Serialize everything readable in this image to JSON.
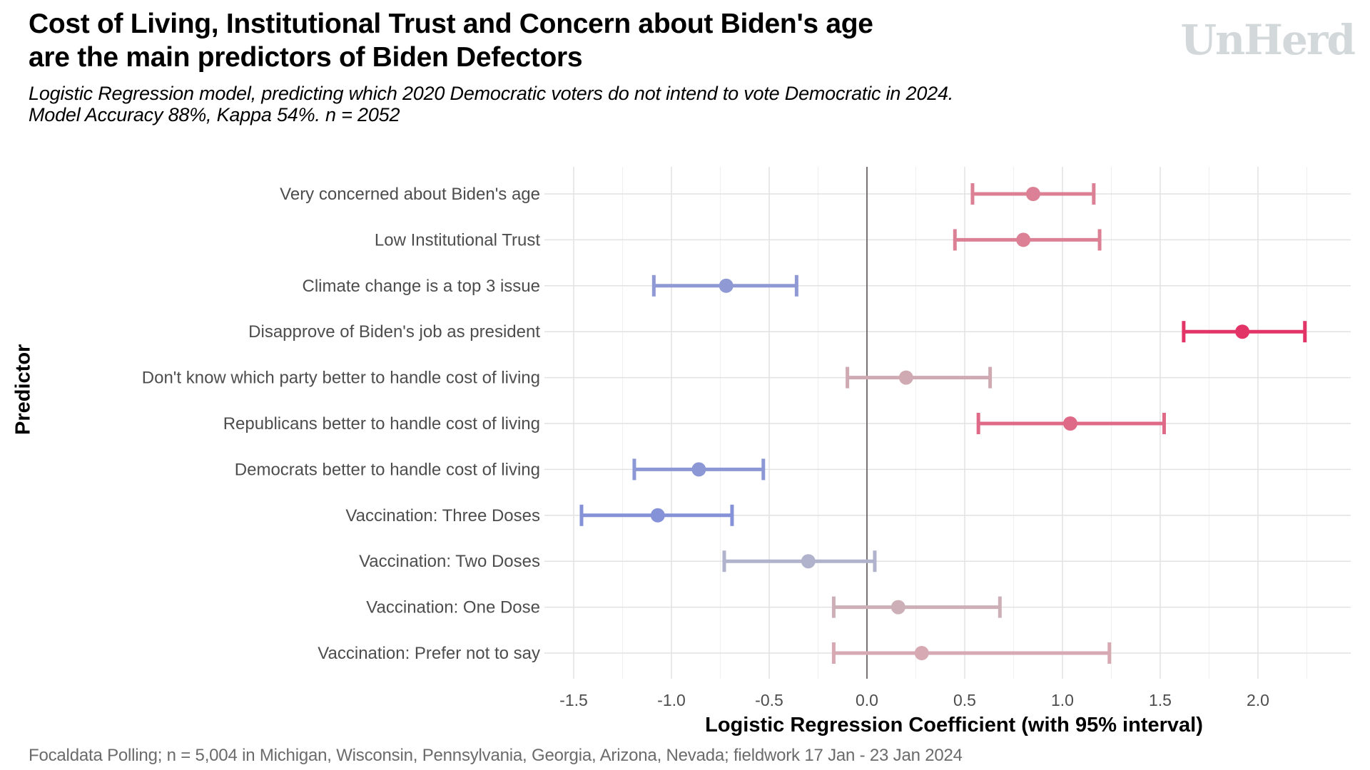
{
  "header": {
    "title_line1": "Cost of Living, Institutional Trust and Concern about Biden's age",
    "title_line2": "are the main predictors of Biden Defectors",
    "subtitle_line1": "Logistic Regression model, predicting which 2020 Democratic voters do not intend to vote Democratic in 2024.",
    "subtitle_line2": "Model Accuracy 88%, Kappa 54%. n = 2052",
    "logo": "UnHerd"
  },
  "footer": {
    "source": "Focaldata Polling; n = 5,004 in Michigan, Wisconsin, Pennsylvania, Georgia, Arizona, Nevada; fieldwork 17 Jan - 23 Jan 2024"
  },
  "chart_data": {
    "type": "scatter",
    "subtype": "coefficient-plot-with-error-bars",
    "title": "Cost of Living, Institutional Trust and Concern about Biden's age are the main predictors of Biden Defectors",
    "xlabel": "Logistic Regression Coefficient (with 95% interval)",
    "ylabel": "Predictor",
    "xlim": [
      -1.5,
      2.25
    ],
    "xticks": [
      -1.5,
      -1.0,
      -0.5,
      0.0,
      0.5,
      1.0,
      1.5,
      2.0
    ],
    "xtick_labels": [
      "-1.5",
      "-1.0",
      "-0.5",
      "0.0",
      "0.5",
      "1.0",
      "1.5",
      "2.0"
    ],
    "grid": true,
    "reference_line_x": 0,
    "legend": "none",
    "predictors": [
      {
        "label": "Very concerned about Biden's age",
        "estimate": 0.85,
        "low": 0.54,
        "high": 1.16,
        "color": "#dc8195"
      },
      {
        "label": "Low Institutional Trust",
        "estimate": 0.8,
        "low": 0.45,
        "high": 1.19,
        "color": "#dc8195"
      },
      {
        "label": "Climate change is a top 3 issue",
        "estimate": -0.72,
        "low": -1.09,
        "high": -0.36,
        "color": "#8f99d4"
      },
      {
        "label": "Disapprove of Biden's job as president",
        "estimate": 1.92,
        "low": 1.62,
        "high": 2.24,
        "color": "#e23467"
      },
      {
        "label": "Don't know which party better to handle cost of living",
        "estimate": 0.2,
        "low": -0.1,
        "high": 0.63,
        "color": "#cfaab2"
      },
      {
        "label": "Republicans better to handle cost of living",
        "estimate": 1.04,
        "low": 0.57,
        "high": 1.52,
        "color": "#df6a88"
      },
      {
        "label": "Democrats better to handle cost of living",
        "estimate": -0.86,
        "low": -1.19,
        "high": -0.53,
        "color": "#8c98d6"
      },
      {
        "label": "Vaccination: Three Doses",
        "estimate": -1.07,
        "low": -1.46,
        "high": -0.69,
        "color": "#8592d8"
      },
      {
        "label": "Vaccination: Two Doses",
        "estimate": -0.3,
        "low": -0.73,
        "high": 0.04,
        "color": "#b0b3cb"
      },
      {
        "label": "Vaccination: One Dose",
        "estimate": 0.16,
        "low": -0.17,
        "high": 0.68,
        "color": "#cdb0b7"
      },
      {
        "label": "Vaccination: Prefer not to say",
        "estimate": 0.28,
        "low": -0.17,
        "high": 1.24,
        "color": "#d6a9b3"
      }
    ]
  }
}
